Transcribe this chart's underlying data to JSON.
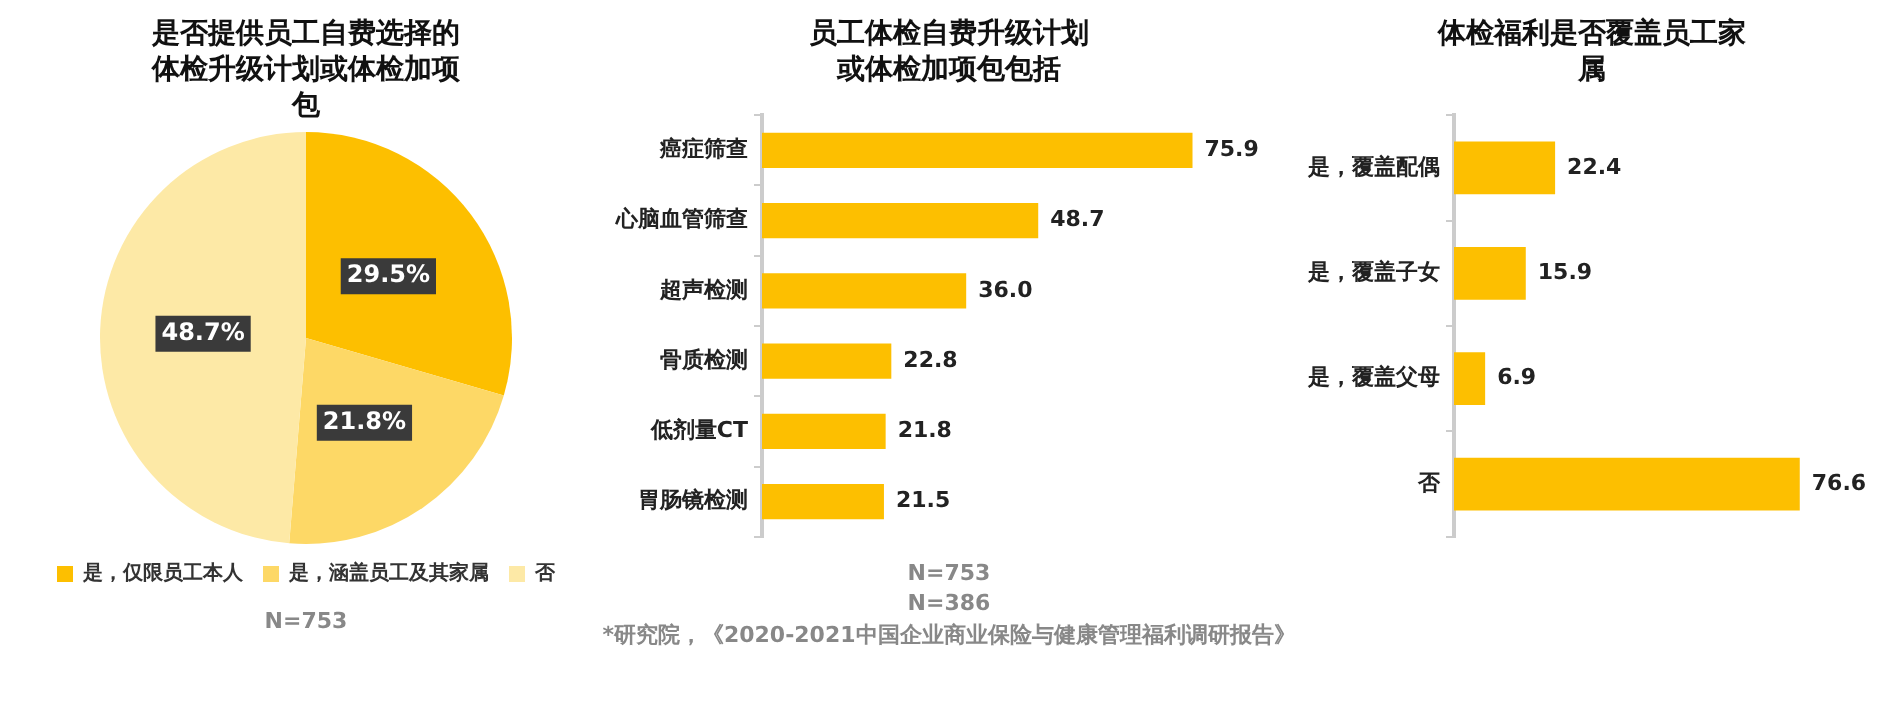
{
  "chart_data": [
    {
      "type": "pie",
      "title": "是否提供员工自费选择的体检升级计划或体检加项包",
      "categories": [
        "是，仅限员工本人",
        "是，涵盖员工及其家属",
        "否"
      ],
      "values": [
        29.5,
        21.8,
        48.7
      ],
      "colors": [
        "#fdbf00",
        "#fdd866",
        "#fde9a6"
      ],
      "value_labels": [
        "29.5%",
        "21.8%",
        "48.7%"
      ],
      "legend": "bottom",
      "annotations": [
        "N=753"
      ]
    },
    {
      "type": "bar",
      "orientation": "horizontal",
      "title": "员工体检自费升级计划或体检加项包包括",
      "categories": [
        "癌症筛查",
        "心脑血管筛查",
        "超声检测",
        "骨质检测",
        "低剂量CT",
        "胃肠镜检测"
      ],
      "values": [
        75.9,
        48.7,
        36.0,
        22.8,
        21.8,
        21.5
      ],
      "color": "#fdbf00",
      "value_labels": [
        "75.9",
        "48.7",
        "36.0",
        "22.8",
        "21.8",
        "21.5"
      ],
      "annotations": [
        "N=753",
        "N=386",
        "*研究院，《2020-2021中国企业商业保险与健康管理福利调研报告》"
      ]
    },
    {
      "type": "bar",
      "orientation": "horizontal",
      "title": "体检福利是否覆盖员工家属",
      "categories": [
        "是，覆盖配偶",
        "是，覆盖子女",
        "是，覆盖父母",
        "否"
      ],
      "values": [
        22.4,
        15.9,
        6.9,
        76.6
      ],
      "color": "#fdbf00",
      "value_labels": [
        "22.4",
        "15.9",
        "6.9",
        "76.6"
      ]
    }
  ]
}
